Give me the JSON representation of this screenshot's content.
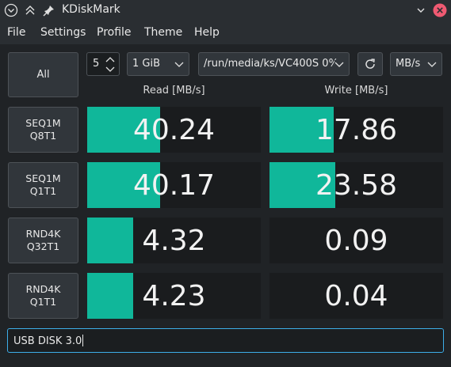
{
  "window": {
    "title": "KDiskMark",
    "icons": [
      "app-menu-icon",
      "keep-above-icon",
      "pin-icon",
      "minimize-icon",
      "close-icon"
    ]
  },
  "menu": {
    "items": [
      "File",
      "Settings",
      "Profile",
      "Theme",
      "Help"
    ]
  },
  "controls": {
    "all_label": "All",
    "count_value": "5",
    "size_value": "1 GiB",
    "path_value": "/run/media/ks/VC400S 0%",
    "unit_value": "MB/s"
  },
  "headers": {
    "read": "Read [MB/s]",
    "write": "Write [MB/s]"
  },
  "tests": [
    {
      "line1": "SEQ1M",
      "line2": "Q8T1",
      "read": "40.24",
      "write": "17.86",
      "read_fill": 0.42,
      "write_fill": 0.37
    },
    {
      "line1": "SEQ1M",
      "line2": "Q1T1",
      "read": "40.17",
      "write": "23.58",
      "read_fill": 0.42,
      "write_fill": 0.38
    },
    {
      "line1": "RND4K",
      "line2": "Q32T1",
      "read": "4.32",
      "write": "0.09",
      "read_fill": 0.265,
      "write_fill": 0
    },
    {
      "line1": "RND4K",
      "line2": "Q1T1",
      "read": "4.23",
      "write": "0.04",
      "read_fill": 0.265,
      "write_fill": 0
    }
  ],
  "comment": {
    "value": "USB DISK 3.0"
  },
  "colors": {
    "accent_fill": "#10b79a",
    "focus": "#3daee9"
  }
}
